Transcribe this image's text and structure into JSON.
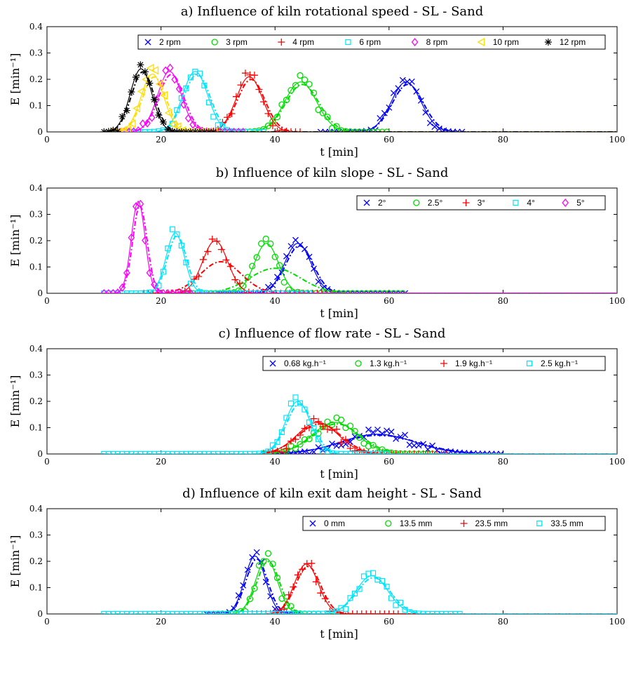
{
  "colors": {
    "blue": "#0000ff",
    "green": "#00dd00",
    "red": "#ff0000",
    "cyan": "#00e5ff",
    "magenta": "#ff00ff",
    "yellow": "#ffdd00",
    "black": "#000000"
  },
  "chart_data": [
    {
      "type": "line",
      "title": "a) Influence of kiln rotational speed - SL - Sand",
      "xlabel": "t [min]",
      "ylabel": "E [min⁻¹]",
      "xlim": [
        0,
        100
      ],
      "ylim": [
        0,
        0.4
      ],
      "xticks": [
        0,
        20,
        40,
        60,
        80,
        100
      ],
      "yticks": [
        0,
        0.1,
        0.2,
        0.3,
        0.4
      ],
      "legend_position": "top-right",
      "series": [
        {
          "name": "2 rpm",
          "marker": "x",
          "color": "blue",
          "peak_t": 63,
          "peak_E": 0.19,
          "sigma": 2.6,
          "x_range": [
            48,
            73
          ]
        },
        {
          "name": "3 rpm",
          "marker": "o",
          "color": "green",
          "peak_t": 44.5,
          "peak_E": 0.19,
          "sigma": 2.8,
          "x_range": [
            30,
            60
          ]
        },
        {
          "name": "4 rpm",
          "marker": "+",
          "color": "red",
          "peak_t": 35.5,
          "peak_E": 0.21,
          "sigma": 2.3,
          "x_range": [
            22,
            45
          ]
        },
        {
          "name": "6 rpm",
          "marker": "square",
          "color": "cyan",
          "peak_t": 26,
          "peak_E": 0.23,
          "sigma": 2.2,
          "x_range": [
            14,
            38
          ]
        },
        {
          "name": "8 rpm",
          "marker": "diamond",
          "color": "magenta",
          "peak_t": 21.5,
          "peak_E": 0.23,
          "sigma": 2.1,
          "x_range": [
            12,
            35
          ]
        },
        {
          "name": "10 rpm",
          "marker": "triangle-left",
          "color": "yellow",
          "peak_t": 18.5,
          "peak_E": 0.22,
          "sigma": 2.0,
          "x_range": [
            11,
            30
          ]
        },
        {
          "name": "12 rpm",
          "marker": "asterisk",
          "color": "black",
          "peak_t": 16.5,
          "peak_E": 0.24,
          "sigma": 1.9,
          "x_range": [
            10,
            30
          ]
        }
      ]
    },
    {
      "type": "line",
      "title": "b) Influence of kiln slope - SL - Sand",
      "xlabel": "t [min]",
      "ylabel": "E [min⁻¹]",
      "xlim": [
        0,
        100
      ],
      "ylim": [
        0,
        0.4
      ],
      "xticks": [
        0,
        20,
        40,
        60,
        80,
        100
      ],
      "yticks": [
        0,
        0.1,
        0.2,
        0.3,
        0.4
      ],
      "legend_position": "top-right",
      "series": [
        {
          "name": "2°",
          "marker": "x",
          "color": "blue",
          "peak_t": 44,
          "peak_E": 0.19,
          "sigma": 2.3,
          "x_range": [
            30,
            63
          ]
        },
        {
          "name": "2.5°",
          "marker": "o",
          "color": "green",
          "peak_t": 38.5,
          "peak_E": 0.19,
          "sigma": 2.1,
          "x_range": [
            24,
            63
          ],
          "dashdot_peak_E": 0.095,
          "dashdot_sigma": 4.5,
          "dashdot_t": 40
        },
        {
          "name": "3°",
          "marker": "+",
          "color": "red",
          "peak_t": 29.5,
          "peak_E": 0.2,
          "sigma": 2.2,
          "x_range": [
            17,
            50
          ],
          "dashdot_peak_E": 0.12,
          "dashdot_sigma": 3.6,
          "dashdot_t": 30.5
        },
        {
          "name": "4°",
          "marker": "square",
          "color": "cyan",
          "peak_t": 22.5,
          "peak_E": 0.23,
          "sigma": 1.6,
          "x_range": [
            10,
            46
          ]
        },
        {
          "name": "5°",
          "marker": "diamond",
          "color": "magenta",
          "peak_t": 16,
          "peak_E": 0.35,
          "sigma": 1.2,
          "x_range": [
            10,
            26
          ]
        }
      ]
    },
    {
      "type": "line",
      "title": "c) Influence of flow rate - SL - Sand",
      "xlabel": "t [min]",
      "ylabel": "E [min⁻¹]",
      "xlim": [
        0,
        100
      ],
      "ylim": [
        0,
        0.4
      ],
      "xticks": [
        0,
        20,
        40,
        60,
        80,
        100
      ],
      "yticks": [
        0,
        0.1,
        0.2,
        0.3,
        0.4
      ],
      "legend_position": "top-right",
      "series": [
        {
          "name": "0.68 kg.h⁻¹",
          "marker": "x",
          "color": "blue",
          "peak_t": 58,
          "peak_E": 0.075,
          "sigma": 6.5,
          "x_range": [
            38,
            80
          ]
        },
        {
          "name": "1.3 kg.h⁻¹",
          "marker": "o",
          "color": "green",
          "peak_t": 50.5,
          "peak_E": 0.12,
          "sigma": 4.0,
          "x_range": [
            38,
            68
          ]
        },
        {
          "name": "1.9 kg.h⁻¹",
          "marker": "+",
          "color": "red",
          "peak_t": 47.5,
          "peak_E": 0.12,
          "sigma": 3.6,
          "x_range": [
            38,
            70
          ]
        },
        {
          "name": "2.5 kg.h⁻¹",
          "marker": "square",
          "color": "cyan",
          "peak_t": 44,
          "peak_E": 0.2,
          "sigma": 2.2,
          "x_range": [
            10,
            60
          ]
        }
      ]
    },
    {
      "type": "line",
      "title": "d) Influence of kiln exit dam height - SL - Sand",
      "xlabel": "t [min]",
      "ylabel": "E [min⁻¹]",
      "xlim": [
        0,
        100
      ],
      "ylim": [
        0,
        0.4
      ],
      "xticks": [
        0,
        20,
        40,
        60,
        80,
        100
      ],
      "yticks": [
        0,
        0.1,
        0.2,
        0.3,
        0.4
      ],
      "legend_position": "top-right",
      "series": [
        {
          "name": "0 mm",
          "marker": "x",
          "color": "blue",
          "peak_t": 36.5,
          "peak_E": 0.22,
          "sigma": 1.8,
          "x_range": [
            28,
            44
          ]
        },
        {
          "name": "13.5 mm",
          "marker": "o",
          "color": "green",
          "peak_t": 38.5,
          "peak_E": 0.21,
          "sigma": 1.9,
          "x_range": [
            30,
            48
          ]
        },
        {
          "name": "23.5 mm",
          "marker": "+",
          "color": "red",
          "peak_t": 45.5,
          "peak_E": 0.19,
          "sigma": 2.1,
          "x_range": [
            36,
            62
          ]
        },
        {
          "name": "33.5 mm",
          "marker": "square",
          "color": "cyan",
          "peak_t": 57,
          "peak_E": 0.145,
          "sigma": 2.8,
          "x_range": [
            10,
            73
          ]
        }
      ]
    }
  ]
}
